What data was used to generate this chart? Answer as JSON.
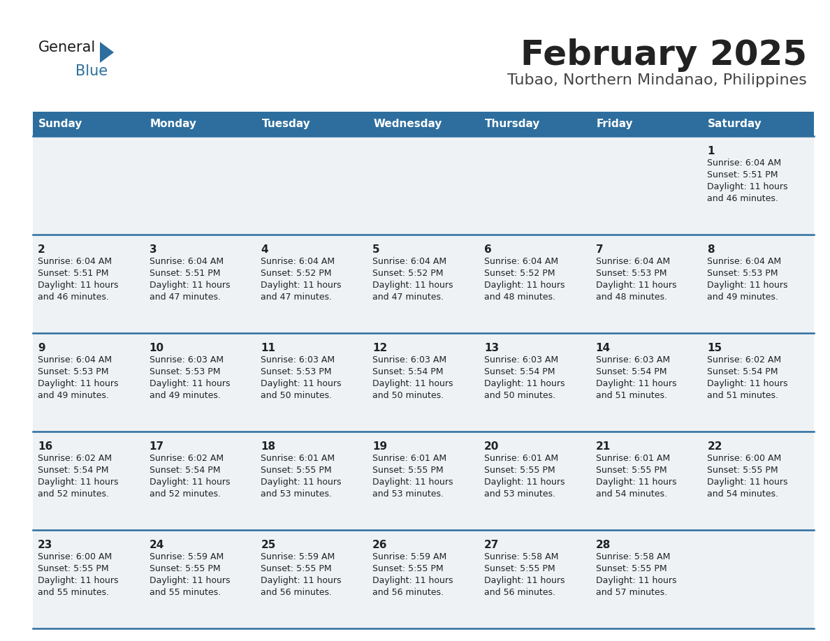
{
  "title": "February 2025",
  "subtitle": "Tubao, Northern Mindanao, Philippines",
  "days_of_week": [
    "Sunday",
    "Monday",
    "Tuesday",
    "Wednesday",
    "Thursday",
    "Friday",
    "Saturday"
  ],
  "header_bg": "#2D6E9E",
  "header_text": "#FFFFFF",
  "cell_bg_light": "#EEF2F5",
  "separator_color": "#2D6E9E",
  "text_color": "#222222",
  "title_color": "#222222",
  "subtitle_color": "#444444",
  "logo_general_color": "#1a1a1a",
  "logo_blue_color": "#2D6E9E",
  "logo_triangle_color": "#2D6E9E",
  "calendar": [
    [
      {
        "day": null,
        "sunrise": null,
        "sunset": null,
        "daylight": null
      },
      {
        "day": null,
        "sunrise": null,
        "sunset": null,
        "daylight": null
      },
      {
        "day": null,
        "sunrise": null,
        "sunset": null,
        "daylight": null
      },
      {
        "day": null,
        "sunrise": null,
        "sunset": null,
        "daylight": null
      },
      {
        "day": null,
        "sunrise": null,
        "sunset": null,
        "daylight": null
      },
      {
        "day": null,
        "sunrise": null,
        "sunset": null,
        "daylight": null
      },
      {
        "day": 1,
        "sunrise": "6:04 AM",
        "sunset": "5:51 PM",
        "daylight": "11 hours and 46 minutes."
      }
    ],
    [
      {
        "day": 2,
        "sunrise": "6:04 AM",
        "sunset": "5:51 PM",
        "daylight": "11 hours and 46 minutes."
      },
      {
        "day": 3,
        "sunrise": "6:04 AM",
        "sunset": "5:51 PM",
        "daylight": "11 hours and 47 minutes."
      },
      {
        "day": 4,
        "sunrise": "6:04 AM",
        "sunset": "5:52 PM",
        "daylight": "11 hours and 47 minutes."
      },
      {
        "day": 5,
        "sunrise": "6:04 AM",
        "sunset": "5:52 PM",
        "daylight": "11 hours and 47 minutes."
      },
      {
        "day": 6,
        "sunrise": "6:04 AM",
        "sunset": "5:52 PM",
        "daylight": "11 hours and 48 minutes."
      },
      {
        "day": 7,
        "sunrise": "6:04 AM",
        "sunset": "5:53 PM",
        "daylight": "11 hours and 48 minutes."
      },
      {
        "day": 8,
        "sunrise": "6:04 AM",
        "sunset": "5:53 PM",
        "daylight": "11 hours and 49 minutes."
      }
    ],
    [
      {
        "day": 9,
        "sunrise": "6:04 AM",
        "sunset": "5:53 PM",
        "daylight": "11 hours and 49 minutes."
      },
      {
        "day": 10,
        "sunrise": "6:03 AM",
        "sunset": "5:53 PM",
        "daylight": "11 hours and 49 minutes."
      },
      {
        "day": 11,
        "sunrise": "6:03 AM",
        "sunset": "5:53 PM",
        "daylight": "11 hours and 50 minutes."
      },
      {
        "day": 12,
        "sunrise": "6:03 AM",
        "sunset": "5:54 PM",
        "daylight": "11 hours and 50 minutes."
      },
      {
        "day": 13,
        "sunrise": "6:03 AM",
        "sunset": "5:54 PM",
        "daylight": "11 hours and 50 minutes."
      },
      {
        "day": 14,
        "sunrise": "6:03 AM",
        "sunset": "5:54 PM",
        "daylight": "11 hours and 51 minutes."
      },
      {
        "day": 15,
        "sunrise": "6:02 AM",
        "sunset": "5:54 PM",
        "daylight": "11 hours and 51 minutes."
      }
    ],
    [
      {
        "day": 16,
        "sunrise": "6:02 AM",
        "sunset": "5:54 PM",
        "daylight": "11 hours and 52 minutes."
      },
      {
        "day": 17,
        "sunrise": "6:02 AM",
        "sunset": "5:54 PM",
        "daylight": "11 hours and 52 minutes."
      },
      {
        "day": 18,
        "sunrise": "6:01 AM",
        "sunset": "5:55 PM",
        "daylight": "11 hours and 53 minutes."
      },
      {
        "day": 19,
        "sunrise": "6:01 AM",
        "sunset": "5:55 PM",
        "daylight": "11 hours and 53 minutes."
      },
      {
        "day": 20,
        "sunrise": "6:01 AM",
        "sunset": "5:55 PM",
        "daylight": "11 hours and 53 minutes."
      },
      {
        "day": 21,
        "sunrise": "6:01 AM",
        "sunset": "5:55 PM",
        "daylight": "11 hours and 54 minutes."
      },
      {
        "day": 22,
        "sunrise": "6:00 AM",
        "sunset": "5:55 PM",
        "daylight": "11 hours and 54 minutes."
      }
    ],
    [
      {
        "day": 23,
        "sunrise": "6:00 AM",
        "sunset": "5:55 PM",
        "daylight": "11 hours and 55 minutes."
      },
      {
        "day": 24,
        "sunrise": "5:59 AM",
        "sunset": "5:55 PM",
        "daylight": "11 hours and 55 minutes."
      },
      {
        "day": 25,
        "sunrise": "5:59 AM",
        "sunset": "5:55 PM",
        "daylight": "11 hours and 56 minutes."
      },
      {
        "day": 26,
        "sunrise": "5:59 AM",
        "sunset": "5:55 PM",
        "daylight": "11 hours and 56 minutes."
      },
      {
        "day": 27,
        "sunrise": "5:58 AM",
        "sunset": "5:55 PM",
        "daylight": "11 hours and 56 minutes."
      },
      {
        "day": 28,
        "sunrise": "5:58 AM",
        "sunset": "5:55 PM",
        "daylight": "11 hours and 57 minutes."
      },
      {
        "day": null,
        "sunrise": null,
        "sunset": null,
        "daylight": null
      }
    ]
  ]
}
